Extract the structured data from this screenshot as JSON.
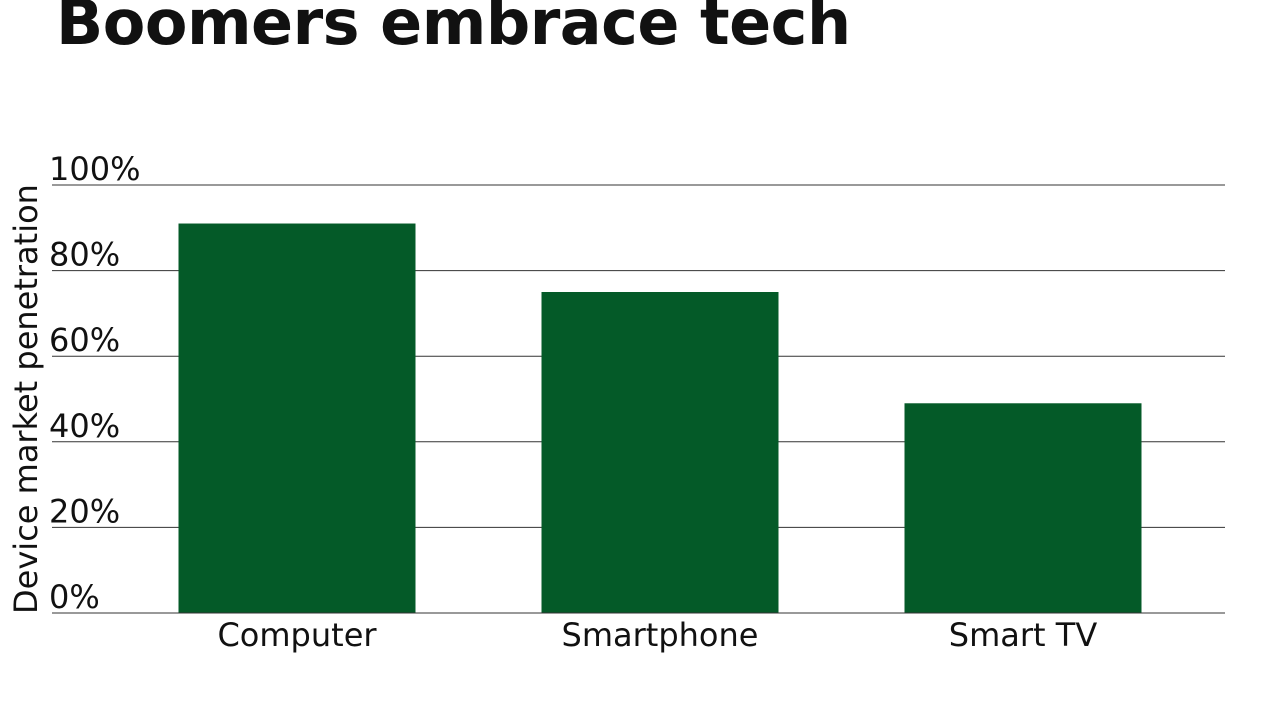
{
  "chart_data": {
    "type": "bar",
    "title": "Boomers embrace tech",
    "ylabel": "Device market penetration",
    "xlabel": "",
    "categories": [
      "Computer",
      "Smartphone",
      "Smart TV"
    ],
    "values": [
      91,
      75,
      49
    ],
    "unit": "%",
    "ylim": [
      0,
      100
    ],
    "yticks": [
      0,
      20,
      40,
      60,
      80,
      100
    ],
    "ytick_labels": [
      "0%",
      "20%",
      "40%",
      "60%",
      "80%",
      "100%"
    ],
    "grid": true,
    "legend": "none",
    "bar_color": "#045a28"
  }
}
